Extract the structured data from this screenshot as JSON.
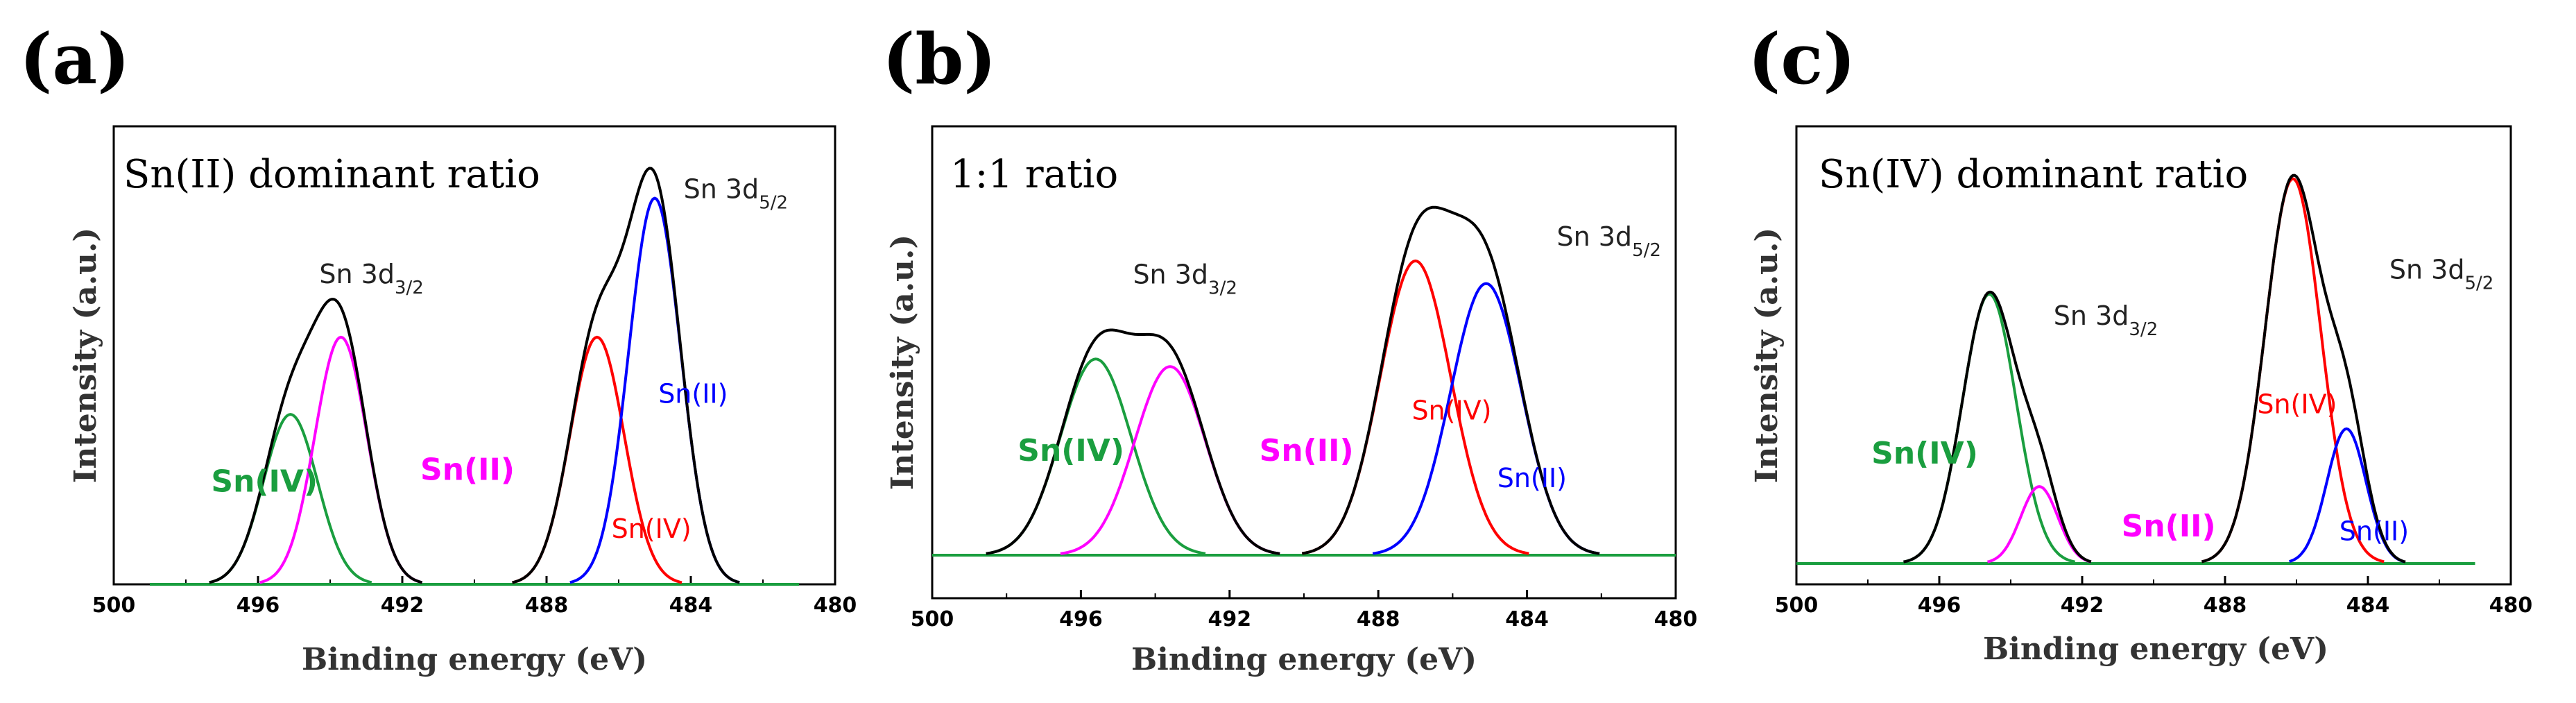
{
  "colors": {
    "envelope": "#000000",
    "sn4": "#1a9e3f",
    "sn2": "#ff00ff",
    "sn4_5": "#ff0000",
    "sn2_5": "#0000ff",
    "baseline": "#1a9e3f"
  },
  "chart_data": [
    {
      "type": "line",
      "panel_label": "(a)",
      "title": "Sn(II) dominant ratio",
      "xlabel": "Binding energy (eV)",
      "ylabel": "Intensity (a.u.)",
      "xlim": [
        500,
        480
      ],
      "xticks": [
        500,
        496,
        492,
        488,
        484,
        480
      ],
      "xtick_labels": [
        "500",
        "496",
        "492",
        "488",
        "484",
        "480"
      ],
      "ylim": [
        0,
        1.15
      ],
      "x_range": [
        499,
        481
      ],
      "annotations": [
        {
          "text": "Sn 3d",
          "sub": "3/2",
          "x": 494.3,
          "y": 0.78
        },
        {
          "text": "Sn 3d",
          "sub": "5/2",
          "x": 484.2,
          "y": 1.0
        }
      ],
      "peaks": [
        {
          "name": "Sn(IV)",
          "center": 495.1,
          "amplitude": 0.44,
          "sigma": 0.75,
          "color_key": "sn4",
          "label": {
            "text": "Sn(IV)",
            "x": 497.3,
            "y": 0.24,
            "style": "big"
          }
        },
        {
          "name": "Sn(II)",
          "center": 493.7,
          "amplitude": 0.64,
          "sigma": 0.72,
          "color_key": "sn2",
          "label": {
            "text": "Sn(II)",
            "x": 491.5,
            "y": 0.27,
            "style": "big"
          }
        },
        {
          "name": "Sn(IV)",
          "center": 486.6,
          "amplitude": 0.64,
          "sigma": 0.75,
          "color_key": "sn4_5",
          "label": {
            "text": "Sn(IV)",
            "x": 486.2,
            "y": 0.12,
            "style": "small"
          }
        },
        {
          "name": "Sn(II)",
          "center": 485.0,
          "amplitude": 1.0,
          "sigma": 0.72,
          "color_key": "sn2_5",
          "label": {
            "text": "Sn(II)",
            "x": 484.9,
            "y": 0.47,
            "style": "small"
          }
        }
      ]
    },
    {
      "type": "line",
      "panel_label": "(b)",
      "title": "1:1 ratio",
      "xlabel": "Binding energy (eV)",
      "ylabel": "Intensity (a.u.)",
      "xlim": [
        500,
        480
      ],
      "xticks": [
        500,
        496,
        492,
        488,
        484,
        480
      ],
      "xtick_labels": [
        "500",
        "496",
        "492",
        "488",
        "484",
        "480"
      ],
      "ylim": [
        0,
        1.1
      ],
      "x_range": [
        500,
        480
      ],
      "annotations": [
        {
          "text": "Sn 3d",
          "sub": "3/2",
          "x": 494.6,
          "y": 0.72
        },
        {
          "text": "Sn 3d",
          "sub": "5/2",
          "x": 483.2,
          "y": 0.82
        }
      ],
      "peaks": [
        {
          "name": "Sn(IV)",
          "center": 495.6,
          "amplitude": 0.52,
          "sigma": 0.95,
          "color_key": "sn4",
          "label": {
            "text": "Sn(IV)",
            "x": 497.7,
            "y": 0.25,
            "style": "big"
          }
        },
        {
          "name": "Sn(II)",
          "center": 493.6,
          "amplitude": 0.5,
          "sigma": 0.95,
          "color_key": "sn2",
          "label": {
            "text": "Sn(II)",
            "x": 491.2,
            "y": 0.25,
            "style": "big"
          }
        },
        {
          "name": "Sn(IV)",
          "center": 487.0,
          "amplitude": 0.78,
          "sigma": 0.95,
          "color_key": "sn4_5",
          "label": {
            "text": "Sn(IV)",
            "x": 487.1,
            "y": 0.36,
            "style": "small"
          }
        },
        {
          "name": "Sn(II)",
          "center": 485.1,
          "amplitude": 0.72,
          "sigma": 0.95,
          "color_key": "sn2_5",
          "label": {
            "text": "Sn(II)",
            "x": 484.8,
            "y": 0.18,
            "style": "small"
          }
        }
      ]
    },
    {
      "type": "line",
      "panel_label": "(c)",
      "title": "Sn(IV) dominant ratio",
      "xlabel": "Binding energy (eV)",
      "ylabel": "Intensity (a.u.)",
      "xlim": [
        500,
        480
      ],
      "xticks": [
        500,
        496,
        492,
        488,
        484,
        480
      ],
      "xtick_labels": [
        "500",
        "496",
        "492",
        "488",
        "484",
        "480"
      ],
      "ylim": [
        0,
        1.1
      ],
      "x_range": [
        500,
        481
      ],
      "annotations": [
        {
          "text": "Sn 3d",
          "sub": "3/2",
          "x": 492.8,
          "y": 0.62
        },
        {
          "text": "Sn 3d",
          "sub": "5/2",
          "x": 483.4,
          "y": 0.74
        }
      ],
      "peaks": [
        {
          "name": "Sn(IV)",
          "center": 494.6,
          "amplitude": 0.7,
          "sigma": 0.75,
          "color_key": "sn4",
          "label": {
            "text": "Sn(IV)",
            "x": 497.9,
            "y": 0.26,
            "style": "big"
          }
        },
        {
          "name": "Sn(II)",
          "center": 493.2,
          "amplitude": 0.2,
          "sigma": 0.52,
          "color_key": "sn2",
          "label": {
            "text": "Sn(II)",
            "x": 490.9,
            "y": 0.07,
            "style": "big"
          }
        },
        {
          "name": "Sn(IV)",
          "center": 486.1,
          "amplitude": 1.0,
          "sigma": 0.78,
          "color_key": "sn4_5",
          "label": {
            "text": "Sn(IV)",
            "x": 487.1,
            "y": 0.39,
            "style": "small"
          }
        },
        {
          "name": "Sn(II)",
          "center": 484.6,
          "amplitude": 0.35,
          "sigma": 0.55,
          "color_key": "sn2_5",
          "label": {
            "text": "Sn(II)",
            "x": 484.8,
            "y": 0.06,
            "style": "small"
          }
        }
      ]
    }
  ]
}
